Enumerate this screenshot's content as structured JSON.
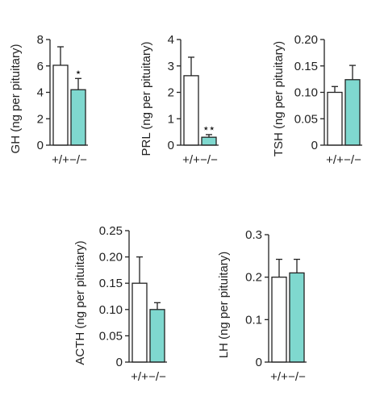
{
  "colors": {
    "wildtype": "#ffffff",
    "knockout": "#7fd8cf",
    "stroke": "#222222"
  },
  "chart_data": [
    {
      "type": "bar",
      "ylabel": "GH (ng per pituitary)",
      "categories": [
        "+/+",
        "−/−"
      ],
      "values": [
        6.05,
        4.2
      ],
      "errors": [
        1.4,
        0.85
      ],
      "ylim": [
        0,
        8
      ],
      "yticks": [
        "0",
        "2",
        "4",
        "6",
        "8"
      ],
      "annotations": [
        "",
        "⋆"
      ],
      "grid": false
    },
    {
      "type": "bar",
      "ylabel": "PRL (ng per pituitary)",
      "categories": [
        "+/+",
        "−/−"
      ],
      "values": [
        2.63,
        0.3
      ],
      "errors": [
        0.7,
        0.1
      ],
      "ylim": [
        0,
        4
      ],
      "yticks": [
        "0",
        "1",
        "2",
        "3",
        "4"
      ],
      "annotations": [
        "",
        "⋆⋆"
      ],
      "grid": false
    },
    {
      "type": "bar",
      "ylabel": "TSH (ng per pituitary)",
      "categories": [
        "+/+",
        "−/−"
      ],
      "values": [
        0.1,
        0.124
      ],
      "errors": [
        0.011,
        0.027
      ],
      "ylim": [
        0,
        0.2
      ],
      "yticks": [
        "0",
        "0.05",
        "0.10",
        "0.15",
        "0.20"
      ],
      "annotations": [
        "",
        ""
      ],
      "grid": false
    },
    {
      "type": "bar",
      "ylabel": "ACTH (ng per pituitary)",
      "categories": [
        "+/+",
        "−/−"
      ],
      "values": [
        0.15,
        0.1
      ],
      "errors": [
        0.05,
        0.013
      ],
      "ylim": [
        0,
        0.25
      ],
      "yticks": [
        "0",
        "0.05",
        "0.10",
        "0.15",
        "0.20",
        "0.25"
      ],
      "annotations": [
        "",
        ""
      ],
      "grid": false
    },
    {
      "type": "bar",
      "ylabel": "LH (ng per pituitary)",
      "categories": [
        "+/+",
        "−/−"
      ],
      "values": [
        0.2,
        0.21
      ],
      "errors": [
        0.042,
        0.032
      ],
      "ylim": [
        0,
        0.3
      ],
      "yticks": [
        "0",
        "0.1",
        "0.2",
        "0.3"
      ],
      "annotations": [
        "",
        ""
      ],
      "grid": false
    }
  ]
}
